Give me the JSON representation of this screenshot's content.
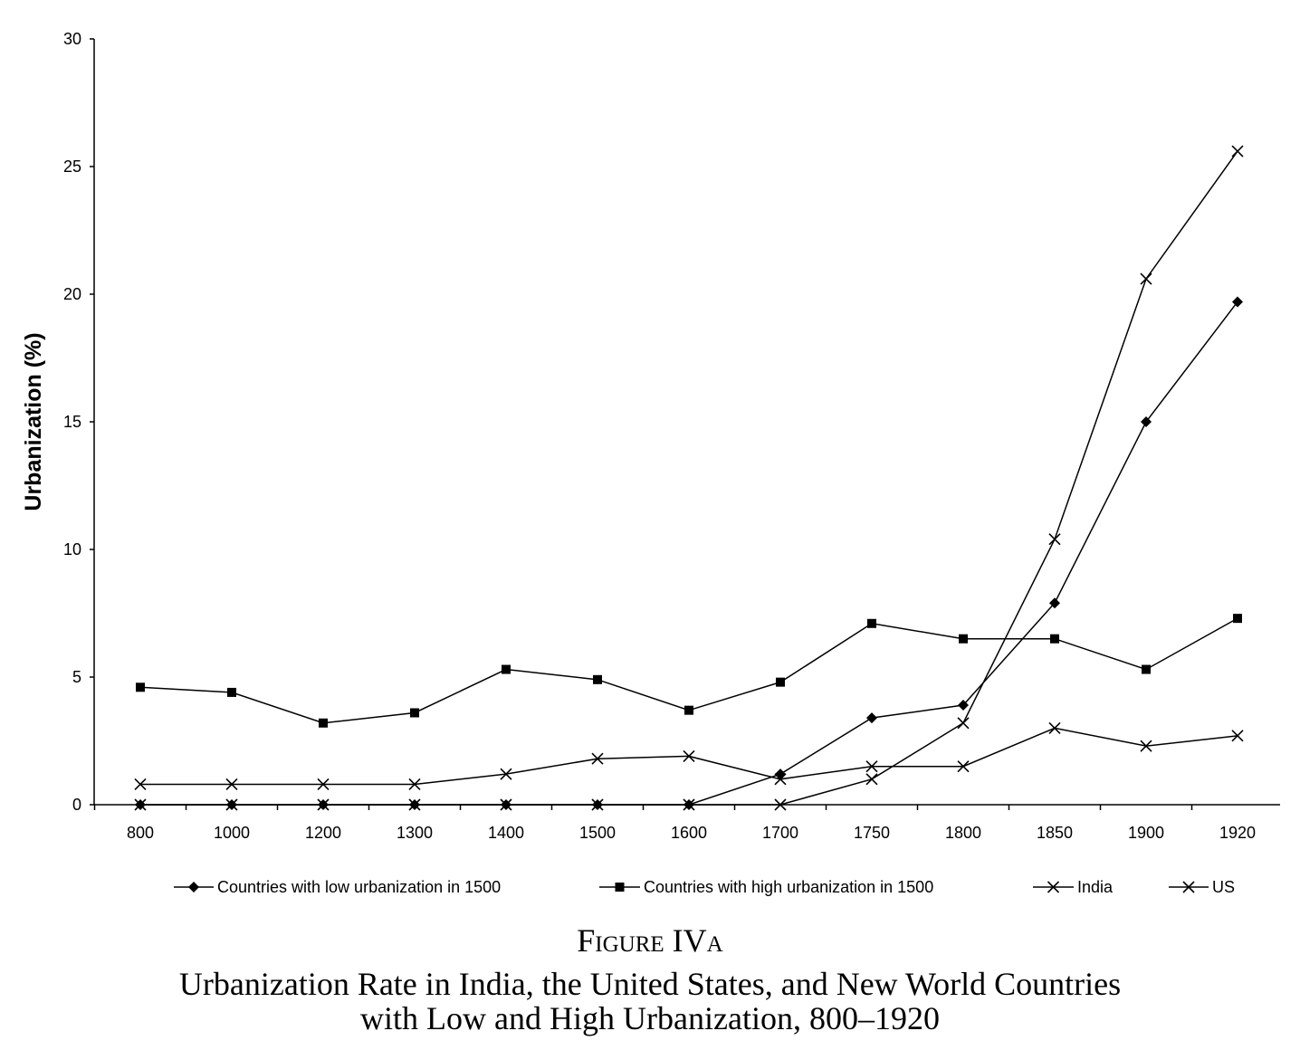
{
  "chart_data": {
    "type": "line",
    "ylabel": "Urbanization (%)",
    "xlabel": "",
    "categories": [
      "800",
      "1000",
      "1200",
      "1300",
      "1400",
      "1500",
      "1600",
      "1700",
      "1750",
      "1800",
      "1850",
      "1900",
      "1920"
    ],
    "ylim": [
      0,
      30
    ],
    "yticks": [
      "0",
      "5",
      "10",
      "15",
      "20",
      "25",
      "30"
    ],
    "grid": false,
    "legend_position": "bottom",
    "series": [
      {
        "name": "Countries with low urbanization in 1500",
        "marker": "diamond",
        "values": [
          0,
          0,
          0,
          0,
          0,
          0,
          0,
          1.2,
          3.4,
          3.9,
          7.9,
          15.0,
          19.7
        ]
      },
      {
        "name": "Countries with high urbanization in 1500",
        "marker": "square",
        "values": [
          4.6,
          4.4,
          3.2,
          3.6,
          5.3,
          4.9,
          3.7,
          4.8,
          7.1,
          6.5,
          6.5,
          5.3,
          7.3
        ]
      },
      {
        "name": "India",
        "marker": "x",
        "values": [
          0.8,
          0.8,
          0.8,
          0.8,
          1.2,
          1.8,
          1.9,
          1.0,
          1.5,
          1.5,
          3.0,
          2.3,
          2.7
        ]
      },
      {
        "name": "US",
        "marker": "x",
        "values": [
          0,
          0,
          0,
          0,
          0,
          0,
          0,
          0,
          1.0,
          3.2,
          10.4,
          20.6,
          25.6
        ]
      }
    ]
  },
  "caption": {
    "figure_label": "Figure IVa",
    "line1": "Urbanization Rate in India, the United States, and New World Countries",
    "line2": "with Low and High Urbanization, 800–1920"
  }
}
